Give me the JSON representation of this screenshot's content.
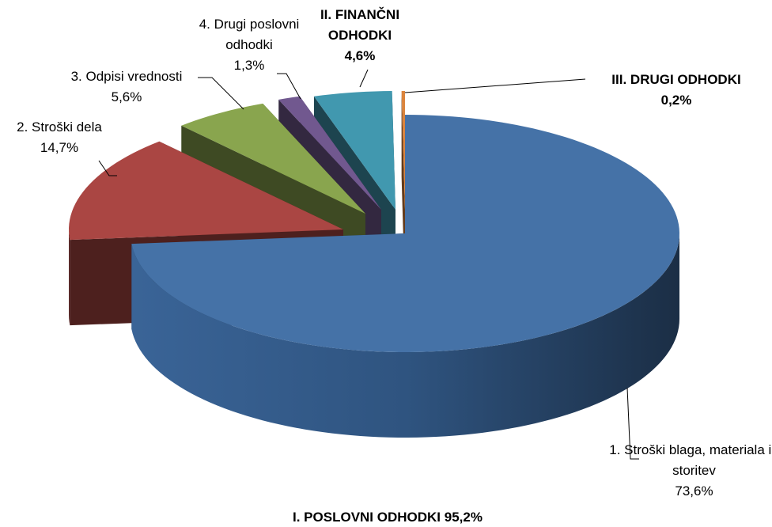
{
  "chart_data": {
    "type": "pie",
    "categories": [
      "1. Stroški blaga, materiala in storitev",
      "2. Stroški dela",
      "3. Odpisi vrednosti",
      "4. Drugi poslovni odhodki",
      "II. FINANČNI ODHODKI",
      "III. DRUGI ODHODKI"
    ],
    "values": [
      73.6,
      14.7,
      5.6,
      1.3,
      4.6,
      0.2
    ],
    "value_labels": [
      "73,6%",
      "14,7%",
      "5,6%",
      "1,3%",
      "4,6%",
      "0,2%"
    ],
    "colors": [
      "#4572a7",
      "#aa4643",
      "#89a54e",
      "#71588f",
      "#4198af",
      "#db843d"
    ],
    "annotation": "I. POSLOVNI ODHODKI 95,2%"
  }
}
